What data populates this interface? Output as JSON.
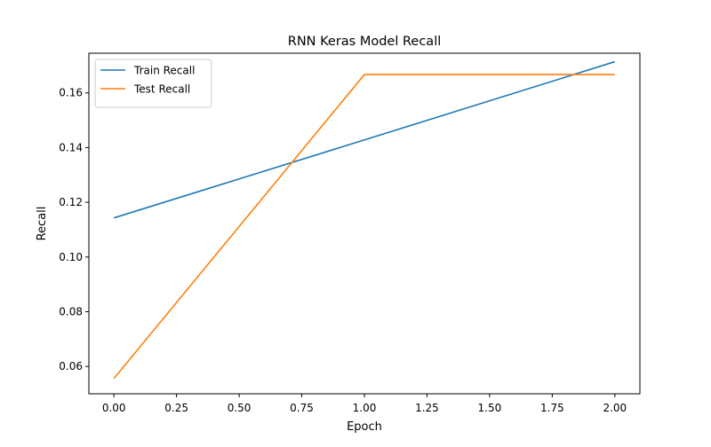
{
  "chart_data": {
    "type": "line",
    "title": "RNN Keras Model Recall",
    "xlabel": "Epoch",
    "ylabel": "Recall",
    "xlim": [
      -0.1,
      2.1
    ],
    "ylim": [
      0.05,
      0.1745
    ],
    "xticks": [
      0.0,
      0.25,
      0.5,
      0.75,
      1.0,
      1.25,
      1.5,
      1.75,
      2.0
    ],
    "xtick_labels": [
      "0.00",
      "0.25",
      "0.50",
      "0.75",
      "1.00",
      "1.25",
      "1.50",
      "1.75",
      "2.00"
    ],
    "yticks": [
      0.06,
      0.08,
      0.1,
      0.12,
      0.14,
      0.16
    ],
    "ytick_labels": [
      "0.06",
      "0.08",
      "0.10",
      "0.12",
      "0.14",
      "0.16"
    ],
    "grid": false,
    "legend_position": "top-left",
    "series": [
      {
        "name": "Train Recall",
        "color": "#1f77b4",
        "x": [
          0,
          1,
          2
        ],
        "y": [
          0.1143,
          0.1428,
          0.1714
        ]
      },
      {
        "name": "Test Recall",
        "color": "#ff7f0e",
        "x": [
          0,
          1,
          2
        ],
        "y": [
          0.0556,
          0.1667,
          0.1667
        ]
      }
    ]
  }
}
